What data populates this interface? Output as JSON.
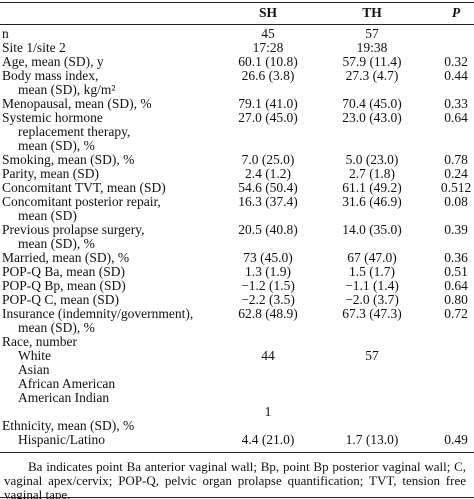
{
  "table": {
    "header": [
      "SH",
      "TH",
      "P"
    ],
    "rows": [
      {
        "label": [
          "n"
        ],
        "cells": [
          "45",
          "57",
          null
        ]
      },
      {
        "label": [
          "Site 1/site 2"
        ],
        "cells": [
          "17:28",
          "19:38",
          null
        ]
      },
      {
        "label": [
          "Age, mean (SD), y"
        ],
        "cells": [
          "60.1 (10.8)",
          "57.9 (11.4)",
          "0.32"
        ]
      },
      {
        "label": [
          "Body mass index,",
          "mean (SD), kg/m²"
        ],
        "cells": [
          "26.6 (3.8)",
          "27.3 (4.7)",
          "0.44"
        ]
      },
      {
        "label": [
          "Menopausal, mean (SD), %"
        ],
        "cells": [
          "79.1 (41.0)",
          "70.4 (45.0)",
          "0.33"
        ]
      },
      {
        "label": [
          "Systemic hormone",
          "replacement therapy,",
          "mean (SD), %"
        ],
        "cells": [
          "27.0 (45.0)",
          "23.0 (43.0)",
          "0.64"
        ]
      },
      {
        "label": [
          "Smoking, mean (SD), %"
        ],
        "cells": [
          "7.0 (25.0)",
          "5.0 (23.0)",
          "0.78"
        ]
      },
      {
        "label": [
          "Parity, mean (SD)"
        ],
        "cells": [
          "2.4 (1.2)",
          "2.7 (1.8)",
          "0.24"
        ]
      },
      {
        "label": [
          "Concomitant TVT, mean (SD)"
        ],
        "cells": [
          "54.6 (50.4)",
          "61.1 (49.2)",
          "0.512"
        ]
      },
      {
        "label": [
          "Concomitant posterior repair,",
          "mean (SD)"
        ],
        "cells": [
          "16.3 (37.4)",
          "31.6 (46.9)",
          "0.08"
        ]
      },
      {
        "label": [
          "Previous prolapse surgery,",
          "mean (SD), %"
        ],
        "cells": [
          "20.5 (40.8)",
          "14.0 (35.0)",
          "0.39"
        ]
      },
      {
        "label": [
          "Married, mean (SD), %"
        ],
        "cells": [
          "73 (45.0)",
          "67 (47.0)",
          "0.36"
        ]
      },
      {
        "label": [
          "POP-Q Ba, mean (SD)"
        ],
        "cells": [
          "1.3 (1.9)",
          "1.5 (1.7)",
          "0.51"
        ]
      },
      {
        "label": [
          "POP-Q Bp, mean (SD)"
        ],
        "cells": [
          "−1.2 (1.5)",
          "−1.1 (1.4)",
          "0.64"
        ]
      },
      {
        "label": [
          "POP-Q C, mean (SD)"
        ],
        "cells": [
          "−2.2 (3.5)",
          "−2.0 (3.7)",
          "0.80"
        ]
      },
      {
        "label": [
          "Insurance (indemnity/government),",
          "mean (SD), %"
        ],
        "cells": [
          "62.8 (48.9)",
          "67.3 (47.3)",
          "0.72"
        ]
      },
      {
        "label": [
          "Race, number"
        ],
        "cells": [
          null,
          null,
          null
        ]
      },
      {
        "label": [
          "White"
        ],
        "cells": [
          "44",
          "57",
          null
        ],
        "indent": true
      },
      {
        "label": [
          "Asian"
        ],
        "cells": [
          null,
          null,
          null
        ],
        "indent": true
      },
      {
        "label": [
          "African American"
        ],
        "cells": [
          null,
          null,
          null
        ],
        "indent": true
      },
      {
        "label": [
          "American Indian"
        ],
        "cells": [
          null,
          null,
          null
        ],
        "indent": true
      },
      {
        "label": null,
        "cells": [
          "1",
          null,
          null
        ]
      },
      {
        "label": [
          "Ethnicity, mean (SD), %"
        ],
        "cells": [
          null,
          null,
          null
        ]
      },
      {
        "label": [
          "Hispanic/Latino"
        ],
        "cells": [
          "4.4 (21.0)",
          "1.7 (13.0)",
          "0.49"
        ],
        "indent": true
      }
    ]
  },
  "footnote": "Ba indicates  point Ba anterior vaginal wall; Bp, point Bp posterior vaginal wall; C, vaginal apex/cervix; POP-Q, pelvic organ prolapse quantification; TVT, tension free vaginal tape."
}
